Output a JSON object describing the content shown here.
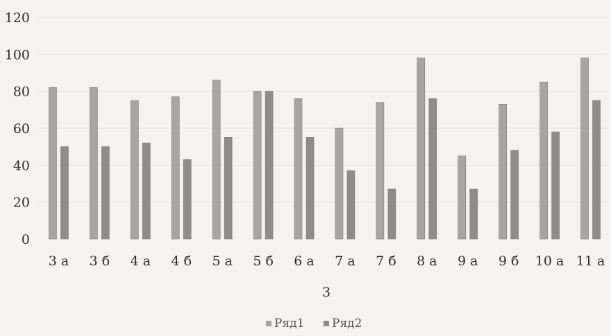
{
  "chart_data": {
    "type": "bar",
    "categories": [
      "3 а",
      "3 б",
      "4 а",
      "4 б",
      "5 а",
      "5 б",
      "6 а",
      "7 а",
      "7 б",
      "8 а",
      "9 а",
      "9 б",
      "10 а",
      "11 а"
    ],
    "series": [
      {
        "name": "Ряд1",
        "values": [
          82,
          82,
          75,
          77,
          86,
          80,
          76,
          60,
          74,
          98,
          45,
          73,
          85,
          98
        ],
        "color": "#a8a6a4"
      },
      {
        "name": "Ряд2",
        "values": [
          50,
          50,
          52,
          43,
          55,
          80,
          55,
          37,
          27,
          76,
          27,
          48,
          58,
          75
        ],
        "color": "#8f8d8b"
      }
    ],
    "xlabel": "3",
    "ylabel": "",
    "ylim": [
      0,
      120
    ],
    "yticks": [
      0,
      20,
      40,
      60,
      80,
      100,
      120
    ],
    "grid": true,
    "legend": "bottom"
  }
}
